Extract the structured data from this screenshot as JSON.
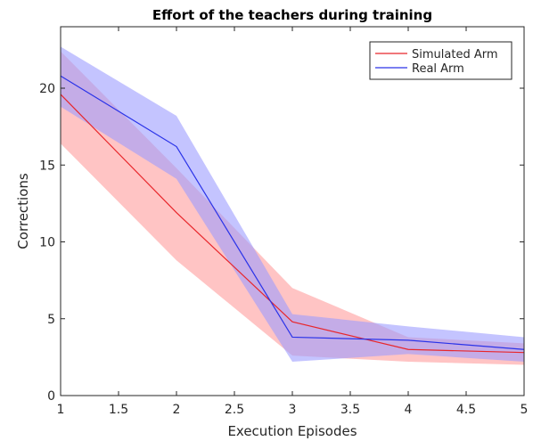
{
  "chart_data": {
    "type": "line",
    "title": "Effort of the teachers during training",
    "xlabel": "Execution Episodes",
    "ylabel": "Corrections",
    "xlim": [
      1,
      5
    ],
    "ylim": [
      0,
      24
    ],
    "xticks": [
      1,
      1.5,
      2,
      2.5,
      3,
      3.5,
      4,
      4.5,
      5
    ],
    "xtick_labels": [
      "1",
      "1.5",
      "2",
      "2.5",
      "3",
      "3.5",
      "4",
      "4.5",
      "5"
    ],
    "yticks": [
      0,
      5,
      10,
      15,
      20
    ],
    "ytick_labels": [
      "0",
      "5",
      "10",
      "15",
      "20"
    ],
    "grid": false,
    "legend_position": "top-right",
    "x": [
      1,
      2,
      3,
      4,
      5
    ],
    "series": [
      {
        "name": "Simulated Arm",
        "color": "#e8262b",
        "band_color": "#ff9c9c",
        "mean": [
          19.6,
          11.9,
          4.8,
          3.0,
          2.8
        ],
        "upper": [
          22.4,
          14.8,
          7.0,
          3.8,
          3.4
        ],
        "lower": [
          16.4,
          8.8,
          2.6,
          2.2,
          2.0
        ]
      },
      {
        "name": "Real Arm",
        "color": "#2a33e8",
        "band_color": "#9d9dff",
        "mean": [
          20.8,
          16.2,
          3.8,
          3.6,
          3.0
        ],
        "upper": [
          22.7,
          18.2,
          5.3,
          4.5,
          3.8
        ],
        "lower": [
          18.8,
          14.1,
          2.2,
          2.7,
          2.2
        ]
      }
    ]
  }
}
